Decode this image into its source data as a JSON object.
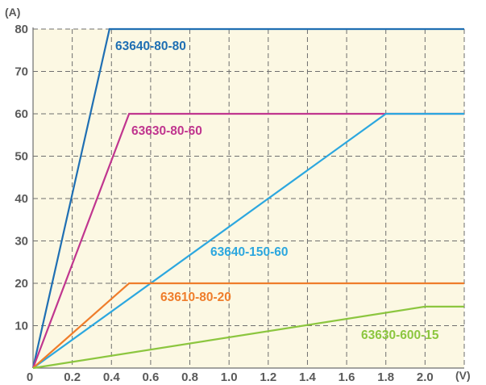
{
  "chart_data": {
    "type": "line",
    "title": "",
    "xlabel": "",
    "ylabel": "",
    "x_unit": "(V)",
    "y_unit": "(A)",
    "xlim": [
      0,
      2.2
    ],
    "ylim": [
      0,
      80
    ],
    "x_ticks": [
      "0",
      "0.2",
      "0.4",
      "0.6",
      "0.8",
      "1.0",
      "1.2",
      "1.4",
      "1.6",
      "1.8",
      "2.0"
    ],
    "y_ticks": [
      "10",
      "20",
      "30",
      "40",
      "50",
      "60",
      "70",
      "80"
    ],
    "grid": true,
    "background": "#fcf8e3",
    "series": [
      {
        "name": "63640-80-80",
        "color": "#1f6fb3",
        "points": [
          [
            0,
            0
          ],
          [
            0.39,
            80
          ],
          [
            2.2,
            80
          ]
        ]
      },
      {
        "name": "63630-80-60",
        "color": "#c0368f",
        "points": [
          [
            0,
            0
          ],
          [
            0.49,
            60
          ],
          [
            2.2,
            60
          ]
        ]
      },
      {
        "name": "63640-150-60",
        "color": "#2ca7df",
        "points": [
          [
            0,
            0
          ],
          [
            1.8,
            60
          ],
          [
            2.2,
            60
          ]
        ]
      },
      {
        "name": "63610-80-20",
        "color": "#ef7d2b",
        "points": [
          [
            0,
            0
          ],
          [
            0.49,
            20
          ],
          [
            2.2,
            20
          ]
        ]
      },
      {
        "name": "63630-600-15",
        "color": "#8cc63f",
        "points": [
          [
            0,
            0
          ],
          [
            2.0,
            14.5
          ],
          [
            2.2,
            14.5
          ]
        ]
      }
    ]
  }
}
